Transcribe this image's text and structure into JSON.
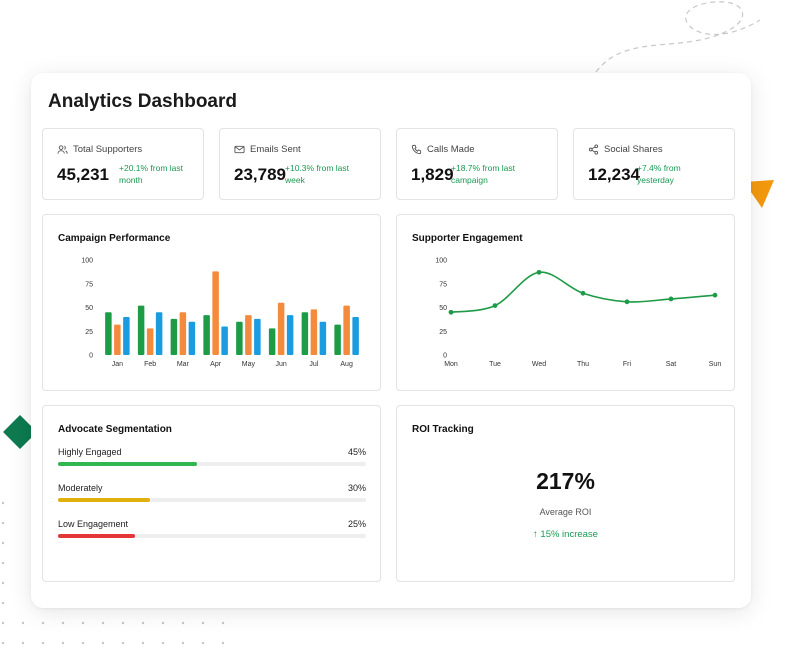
{
  "dashboard": {
    "title": "Analytics Dashboard"
  },
  "stats": [
    {
      "label": "Total Supporters",
      "value": "45,231",
      "delta": "+20.1% from last month",
      "icon": "users-icon"
    },
    {
      "label": "Emails Sent",
      "value": "23,789",
      "delta": "+10.3% from last week",
      "icon": "mail-icon"
    },
    {
      "label": "Calls Made",
      "value": "1,829",
      "delta": "+18.7% from last campaign",
      "icon": "phone-icon"
    },
    {
      "label": "Social Shares",
      "value": "12,234",
      "delta": "+7.4% from yesterday",
      "icon": "share-icon"
    }
  ],
  "campaign": {
    "title": "Campaign Performance",
    "chart_data": {
      "type": "bar",
      "categories": [
        "Jan",
        "Feb",
        "Mar",
        "Apr",
        "May",
        "Jun",
        "Jul",
        "Aug"
      ],
      "series": [
        {
          "values": [
            45,
            52,
            38,
            42,
            35,
            28,
            45,
            32
          ],
          "color": "#1e9b47"
        },
        {
          "values": [
            32,
            28,
            45,
            88,
            42,
            55,
            48,
            52
          ],
          "color": "#f48a3c"
        },
        {
          "values": [
            40,
            45,
            35,
            30,
            38,
            42,
            35,
            40
          ],
          "color": "#1b9be0"
        }
      ],
      "ylim": [
        0,
        100
      ],
      "yticks": [
        "0",
        "25",
        "50",
        "75",
        "100"
      ]
    }
  },
  "engagement": {
    "title": "Supporter Engagement",
    "chart_data": {
      "type": "line",
      "categories": [
        "Mon",
        "Tue",
        "Wed",
        "Thu",
        "Fri",
        "Sat",
        "Sun"
      ],
      "series": [
        {
          "values": [
            45,
            52,
            87,
            65,
            56,
            59,
            63
          ],
          "color": "#1e9b47"
        }
      ],
      "ylim": [
        0,
        100
      ],
      "yticks": [
        "0",
        "25",
        "50",
        "75",
        "100"
      ]
    }
  },
  "segmentation": {
    "title": "Advocate Segmentation",
    "rows": [
      {
        "name": "Highly Engaged",
        "pct_label": "45%",
        "value": 0.45,
        "color": "#2eb84f"
      },
      {
        "name": "Moderately",
        "pct_label": "30%",
        "value": 0.3,
        "color": "#e0b00e"
      },
      {
        "name": "Low Engagement",
        "pct_label": "25%",
        "value": 0.25,
        "color": "#e5373a"
      }
    ]
  },
  "roi": {
    "title": "ROI Tracking",
    "value": "217%",
    "caption": "Average ROI",
    "increase": "↑ 15% increase"
  }
}
